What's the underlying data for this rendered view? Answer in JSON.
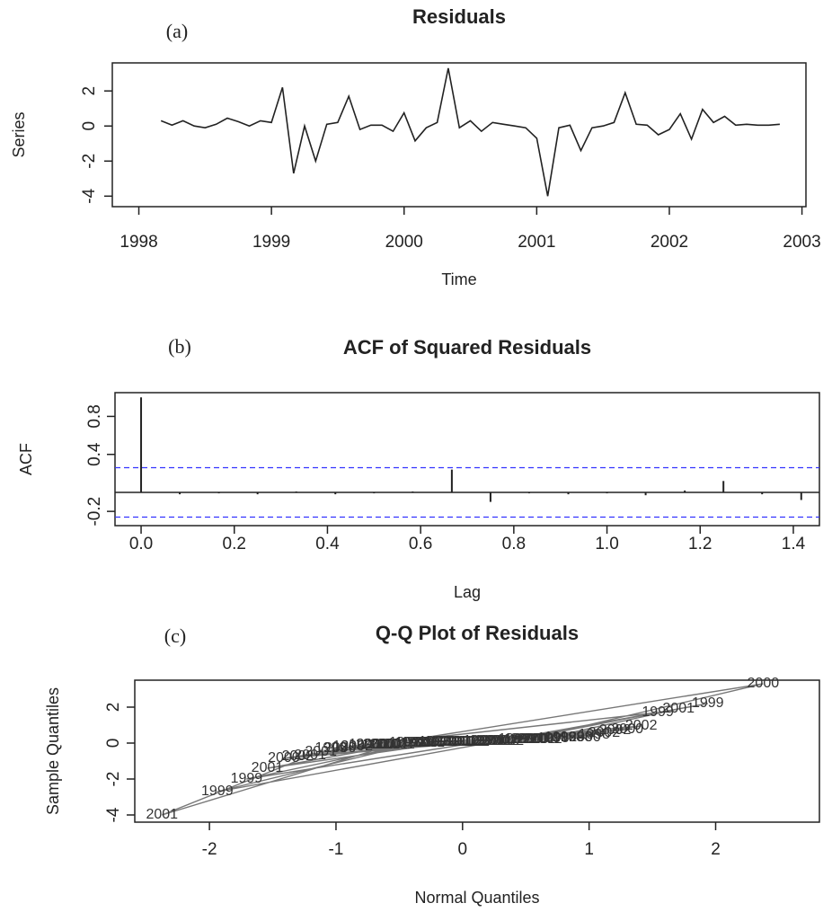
{
  "chart_data": [
    {
      "type": "line",
      "title": "Residuals",
      "annotation": "(a)",
      "xlabel": "Time",
      "ylabel": "Series",
      "color": "#222222",
      "x": [
        1998.167,
        1998.25,
        1998.333,
        1998.417,
        1998.5,
        1998.583,
        1998.667,
        1998.75,
        1998.833,
        1998.917,
        1999.0,
        1999.083,
        1999.167,
        1999.25,
        1999.333,
        1999.417,
        1999.5,
        1999.583,
        1999.667,
        1999.75,
        1999.833,
        1999.917,
        2000.0,
        2000.083,
        2000.167,
        2000.25,
        2000.333,
        2000.417,
        2000.5,
        2000.583,
        2000.667,
        2000.75,
        2000.833,
        2000.917,
        2001.0,
        2001.083,
        2001.167,
        2001.25,
        2001.333,
        2001.417,
        2001.5,
        2001.583,
        2001.667,
        2001.75,
        2001.833,
        2001.917,
        2002.0,
        2002.083,
        2002.167,
        2002.25,
        2002.333,
        2002.417,
        2002.5,
        2002.583,
        2002.667,
        2002.75,
        2002.833
      ],
      "values": [
        0.3,
        0.05,
        0.3,
        0.0,
        -0.1,
        0.1,
        0.45,
        0.25,
        0.0,
        0.3,
        0.2,
        2.2,
        -2.7,
        0.0,
        -2.0,
        0.1,
        0.2,
        1.7,
        -0.2,
        0.05,
        0.05,
        -0.3,
        0.75,
        -0.85,
        -0.1,
        0.2,
        3.3,
        -0.1,
        0.3,
        -0.3,
        0.2,
        0.1,
        0.0,
        -0.1,
        -0.7,
        -4.0,
        -0.1,
        0.05,
        -1.4,
        -0.1,
        0.0,
        0.2,
        1.9,
        0.1,
        0.05,
        -0.5,
        -0.2,
        0.7,
        -0.75,
        0.95,
        0.2,
        0.55,
        0.05,
        0.1,
        0.05,
        0.05,
        0.1
      ],
      "xlim": [
        1997.8,
        2003.03
      ],
      "ylim": [
        -4.6,
        3.6
      ],
      "xticks": [
        1998,
        1999,
        2000,
        2001,
        2002,
        2003
      ],
      "yticks": [
        -4,
        -2,
        0,
        2
      ]
    },
    {
      "type": "acf",
      "title": "ACF of Squared Residuals",
      "annotation": "(b)",
      "xlabel": "Lag",
      "ylabel": "ACF",
      "color": "#222222",
      "x": [
        0,
        0.083,
        0.167,
        0.25,
        0.333,
        0.417,
        0.5,
        0.583,
        0.667,
        0.75,
        0.833,
        0.917,
        1.0,
        1.083,
        1.167,
        1.25,
        1.333,
        1.417
      ],
      "values": [
        1.0,
        -0.02,
        -0.01,
        -0.02,
        0.01,
        -0.02,
        -0.01,
        0.01,
        0.24,
        -0.1,
        -0.01,
        -0.02,
        -0.01,
        -0.03,
        0.02,
        0.12,
        -0.02,
        -0.08
      ],
      "conf_bounds": [
        0.26,
        -0.26
      ],
      "conf_color": "#3333ff",
      "xlim": [
        -0.056,
        1.456
      ],
      "ylim": [
        -0.35,
        1.05
      ],
      "xticks": [
        {
          "value": 0,
          "label": "0.0"
        },
        0.2,
        0.4,
        0.6,
        0.8,
        {
          "value": 1,
          "label": "1.0"
        },
        1.2,
        1.4
      ],
      "yticks": [
        -0.2,
        0.4,
        0.8
      ]
    },
    {
      "type": "qq",
      "title": "Q-Q Plot of Residuals",
      "annotation": "(c)",
      "xlabel": "Normal Quantiles",
      "ylabel": "Sample Quantiles",
      "color": "#777777",
      "x": [
        0.774,
        -0.221,
        0.835,
        -0.455,
        -0.774,
        0.132,
        1.04,
        0.716,
        -0.407,
        0.9,
        0.407,
        1.938,
        -1.938,
        -0.359,
        -1.707,
        0.177,
        0.455,
        1.543,
        -0.9,
        -0.177,
        -0.132,
        -1.04,
        1.302,
        -1.412,
        -0.716,
        0.504,
        2.375,
        -0.661,
        0.967,
        -0.967,
        0.555,
        0.221,
        -0.313,
        -0.607,
        -1.205,
        -2.375,
        -0.555,
        -0.088,
        -1.543,
        -0.504,
        -0.267,
        0.607,
        1.707,
        0.267,
        -0.044,
        -1.119,
        -0.835,
        1.205,
        -1.302,
        1.412,
        0.661,
        1.119,
        0,
        0.313,
        0.044,
        0.088,
        0.359
      ],
      "values": [
        0.3,
        0.05,
        0.3,
        0.0,
        -0.1,
        0.1,
        0.45,
        0.25,
        0.0,
        0.3,
        0.2,
        2.2,
        -2.7,
        0.0,
        -2.0,
        0.1,
        0.2,
        1.7,
        -0.2,
        0.05,
        0.05,
        -0.3,
        0.75,
        -0.85,
        -0.1,
        0.2,
        3.3,
        -0.1,
        0.3,
        -0.3,
        0.2,
        0.1,
        0.0,
        -0.1,
        -0.7,
        -4.0,
        -0.1,
        0.05,
        -1.4,
        -0.1,
        0.0,
        0.2,
        1.9,
        0.1,
        0.05,
        -0.5,
        -0.2,
        0.7,
        -0.75,
        0.95,
        0.2,
        0.55,
        0.05,
        0.1,
        0.05,
        0.05,
        0.1
      ],
      "point_labels": [
        "1998",
        "1998",
        "1998",
        "1998",
        "1998",
        "1998",
        "1998",
        "1998",
        "1998",
        "1998",
        "1999",
        "1999",
        "1999",
        "1999",
        "1999",
        "1999",
        "1999",
        "1999",
        "1999",
        "1999",
        "1999",
        "1999",
        "2000",
        "2000",
        "2000",
        "2000",
        "2000",
        "2000",
        "2000",
        "2000",
        "2000",
        "2000",
        "2000",
        "2000",
        "2001",
        "2001",
        "2001",
        "2001",
        "2001",
        "2001",
        "2001",
        "2001",
        "2001",
        "2001",
        "2001",
        "2001",
        "2002",
        "2002",
        "2002",
        "2002",
        "2002",
        "2002",
        "2002",
        "2002",
        "2002",
        "2002",
        "2002"
      ],
      "xlim": [
        -2.59,
        2.82
      ],
      "ylim": [
        -4.4,
        3.5
      ],
      "xticks": [
        -2,
        -1,
        0,
        1,
        2
      ],
      "yticks": [
        -4,
        -2,
        0,
        2
      ]
    }
  ]
}
